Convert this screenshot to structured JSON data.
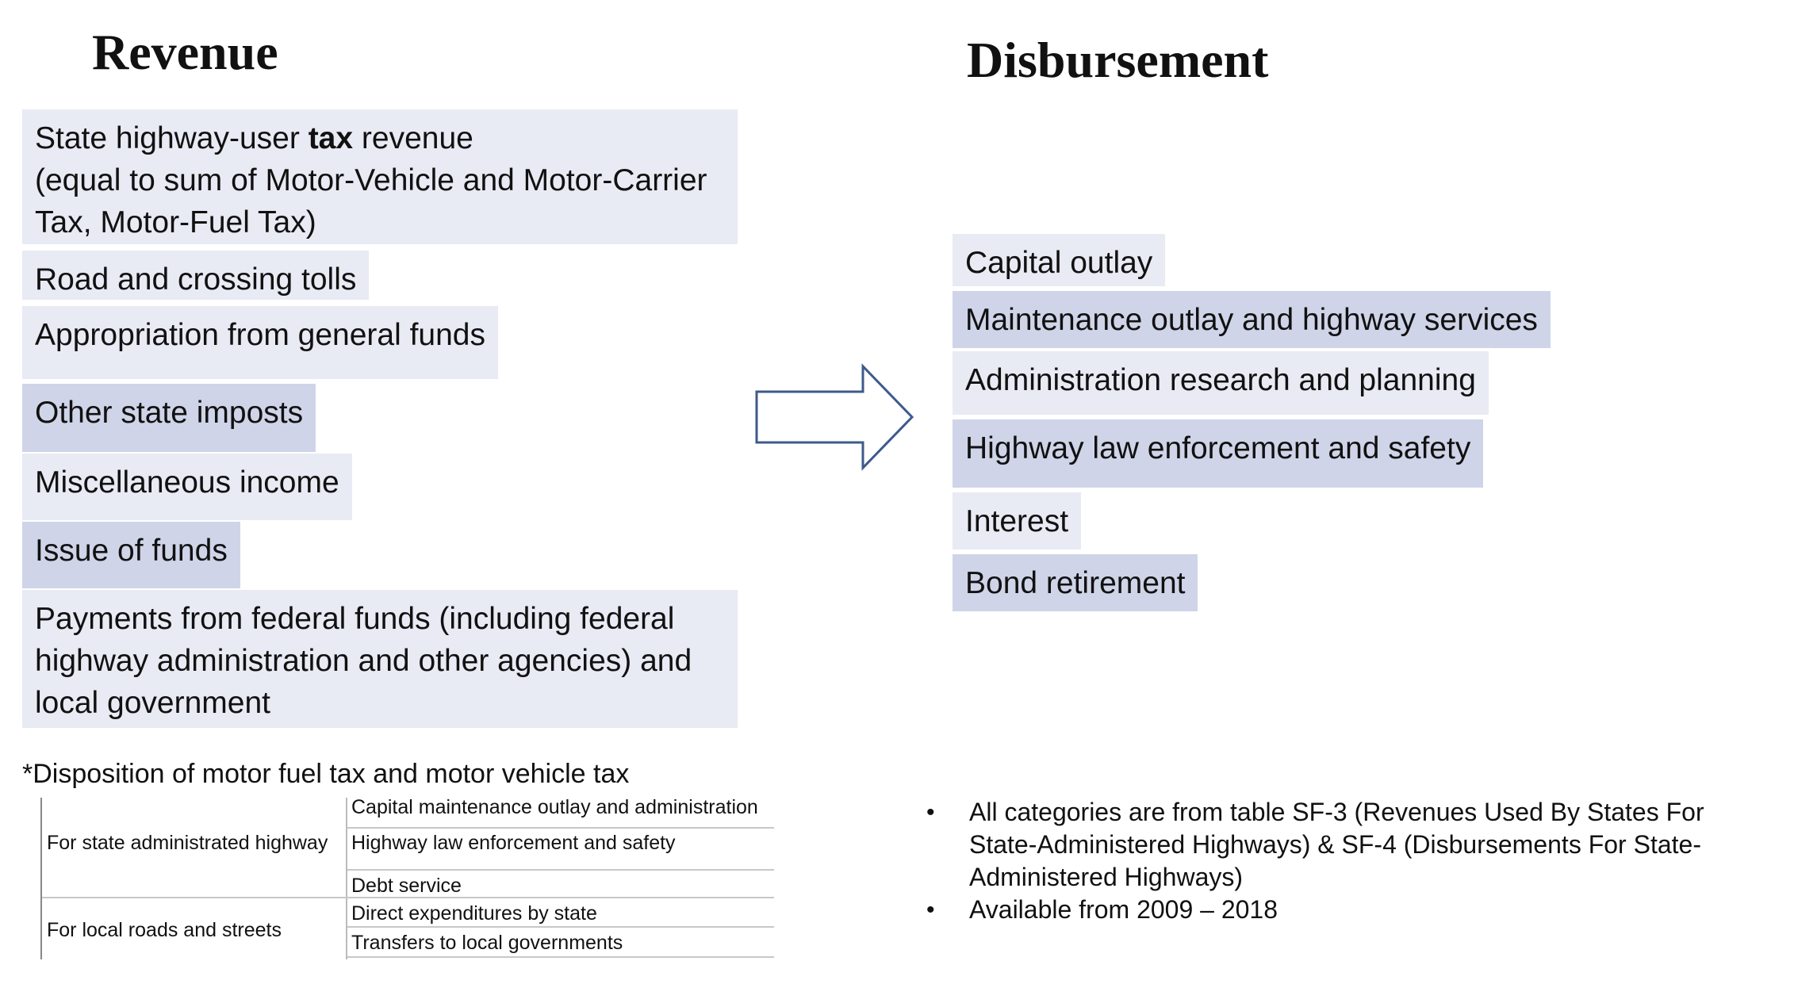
{
  "revenue": {
    "heading": "Revenue",
    "items": [
      {
        "label_pre": "State highway-user ",
        "label_bold": "tax",
        "label_post": " revenue",
        "subtext": "(equal to sum of Motor-Vehicle and Motor-Carrier Tax, Motor-Fuel Tax)"
      },
      {
        "label": "Road and crossing tolls"
      },
      {
        "label": "Appropriation from general funds"
      },
      {
        "label": "Other state imposts"
      },
      {
        "label": "Miscellaneous income"
      },
      {
        "label": "Issue of funds"
      },
      {
        "label": "Payments from federal funds (including federal highway administration and other agencies) and local government"
      }
    ]
  },
  "disbursement": {
    "heading": "Disbursement",
    "items": [
      {
        "label": "Capital outlay"
      },
      {
        "label": "Maintenance outlay and highway services"
      },
      {
        "label": "Administration research and planning"
      },
      {
        "label": "Highway law enforcement and safety"
      },
      {
        "label": "Interest"
      },
      {
        "label": "Bond retirement"
      }
    ]
  },
  "disposition": {
    "title": "*Disposition of motor fuel tax and motor vehicle tax",
    "groups": [
      {
        "name": "For state administrated highway",
        "items": [
          "Capital maintenance outlay and administration",
          "Highway law enforcement and safety",
          "Debt service"
        ]
      },
      {
        "name": "For local roads and streets",
        "items": [
          "Direct expenditures by state",
          "Transfers to local governments"
        ]
      }
    ]
  },
  "notes": [
    "All categories are from table SF-3 (Revenues Used By States For State-Administered Highways) & SF-4 (Disbursements For State-Administered Highways)",
    "Available from 2009 – 2018"
  ],
  "colors": {
    "box_light": "#e8eaf4",
    "box_dark": "#cfd4e8",
    "arrow_stroke": "#3e5a8c"
  }
}
